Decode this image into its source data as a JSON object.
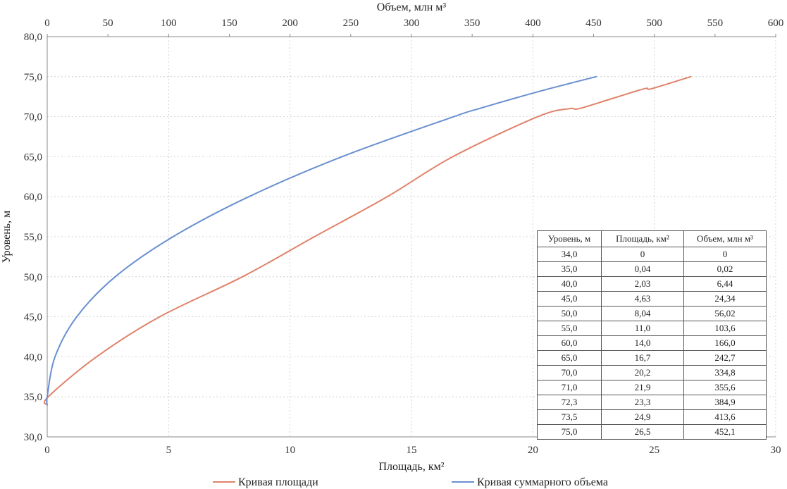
{
  "chart_data": {
    "type": "line",
    "x_bottom": {
      "label": "Площадь, км²",
      "range": [
        0,
        30
      ],
      "ticks": [
        "0",
        "5",
        "10",
        "15",
        "20",
        "25",
        "30"
      ]
    },
    "x_top": {
      "label": "Объем, млн м³",
      "range": [
        0,
        600
      ],
      "ticks": [
        "0",
        "50",
        "100",
        "150",
        "200",
        "250",
        "300",
        "350",
        "400",
        "450",
        "500",
        "550",
        "600"
      ]
    },
    "y": {
      "label": "Уровень, м",
      "range": [
        30,
        80
      ],
      "ticks": [
        "30,0",
        "35,0",
        "40,0",
        "45,0",
        "50,0",
        "55,0",
        "60,0",
        "65,0",
        "70,0",
        "75,0",
        "80,0"
      ]
    },
    "series": [
      {
        "name": "Кривая площади",
        "axis": "bottom",
        "color": "#e0826a",
        "x": [
          0,
          0.04,
          2.03,
          4.63,
          8.04,
          11.0,
          14.0,
          16.7,
          20.2,
          21.5,
          21.9,
          23.3,
          24.6,
          24.9,
          26.5
        ],
        "y": [
          34.0,
          35.0,
          40.0,
          45.0,
          50.0,
          55.0,
          60.0,
          65.0,
          70.0,
          71.0,
          71.0,
          72.3,
          73.5,
          73.5,
          75.0
        ]
      },
      {
        "name": "Кривая суммарного объема",
        "axis": "top",
        "color": "#6a8fd0",
        "x": [
          0,
          0.02,
          6.44,
          24.34,
          56.02,
          103.6,
          166.0,
          242.7,
          334.8,
          355.6,
          384.9,
          413.6,
          452.1
        ],
        "y": [
          34.0,
          35.0,
          40.0,
          45.0,
          50.0,
          55.0,
          60.0,
          65.0,
          70.0,
          71.0,
          72.3,
          73.5,
          75.0
        ]
      }
    ],
    "grid": true,
    "legend_position": "bottom"
  },
  "table": {
    "headers": [
      "Уровень, м",
      "Площадь, км²",
      "Объем, млн м³"
    ],
    "rows": [
      [
        "34,0",
        "0",
        "0"
      ],
      [
        "35,0",
        "0,04",
        "0,02"
      ],
      [
        "40,0",
        "2,03",
        "6,44"
      ],
      [
        "45,0",
        "4,63",
        "24,34"
      ],
      [
        "50,0",
        "8,04",
        "56,02"
      ],
      [
        "55,0",
        "11,0",
        "103,6"
      ],
      [
        "60,0",
        "14,0",
        "166,0"
      ],
      [
        "65,0",
        "16,7",
        "242,7"
      ],
      [
        "70,0",
        "20,2",
        "334,8"
      ],
      [
        "71,0",
        "21,9",
        "355,6"
      ],
      [
        "72,3",
        "23,3",
        "384,9"
      ],
      [
        "73,5",
        "24,9",
        "413,6"
      ],
      [
        "75,0",
        "26,5",
        "452,1"
      ]
    ]
  }
}
